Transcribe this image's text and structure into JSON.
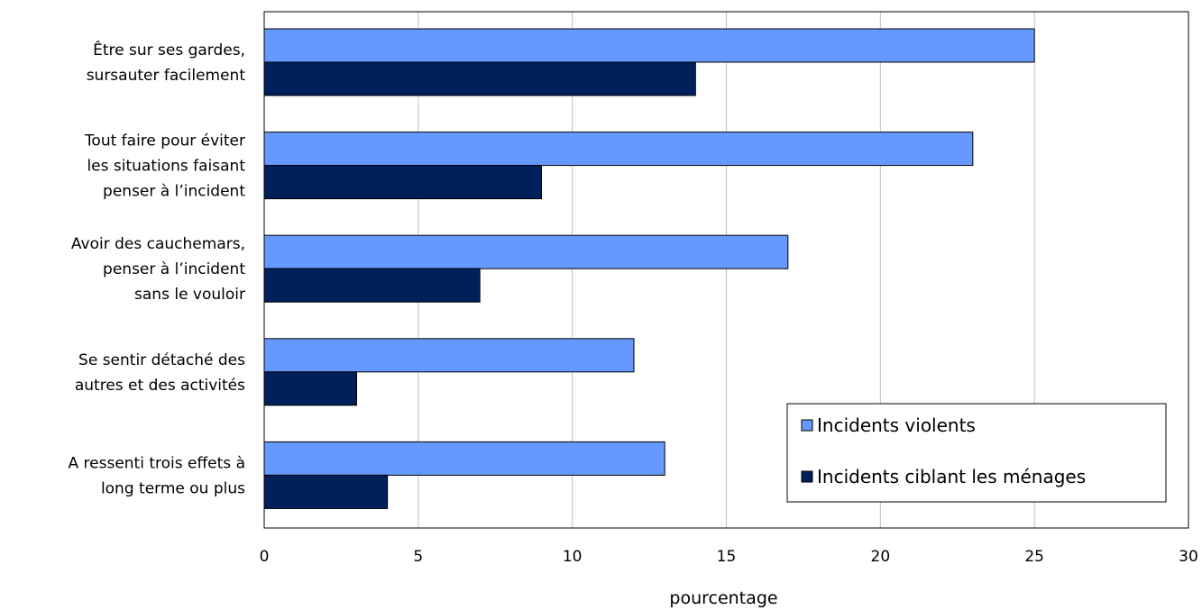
{
  "chart_data": {
    "type": "bar",
    "orientation": "horizontal",
    "categories": [
      [
        "Être sur ses gardes,",
        "sursauter facilement"
      ],
      [
        "Tout faire pour éviter",
        "les situations faisant",
        "penser à l’incident"
      ],
      [
        "Avoir des cauchemars,",
        "penser à l’incident",
        "sans le vouloir"
      ],
      [
        "Se sentir détaché des",
        "autres et des activités"
      ],
      [
        "A ressenti trois effets à",
        "long terme ou plus"
      ]
    ],
    "series": [
      {
        "name": "Incidents violents",
        "color": "#6699ff",
        "values": [
          25,
          23,
          17,
          12,
          13
        ]
      },
      {
        "name": "Incidents ciblant les ménages",
        "color": "#00205b",
        "values": [
          14,
          9,
          7,
          3,
          4
        ]
      }
    ],
    "xlabel": "pourcentage",
    "xlim": [
      0,
      30
    ],
    "xticks": [
      0,
      5,
      10,
      15,
      20,
      25,
      30
    ],
    "grid": "vertical",
    "legend_position": "bottom-right"
  }
}
